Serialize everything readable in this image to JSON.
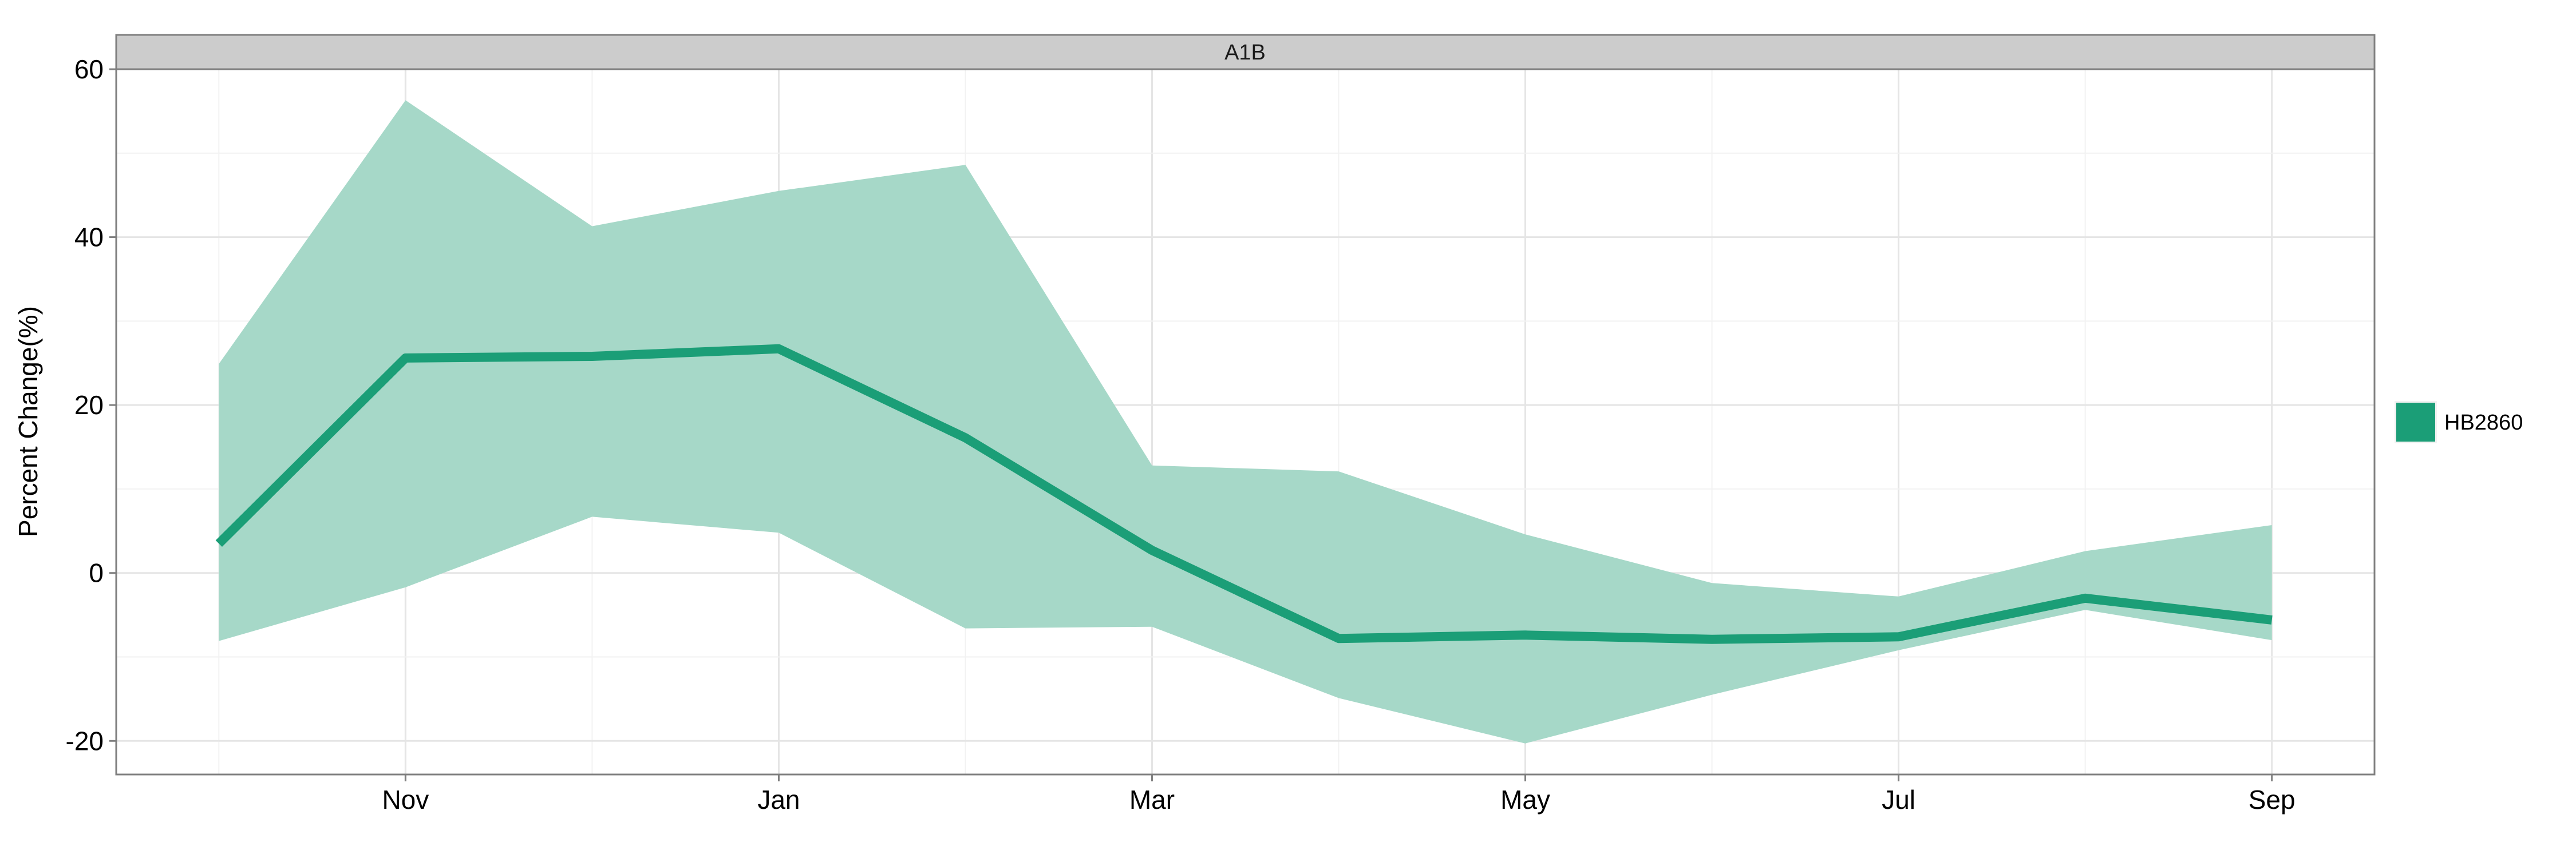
{
  "chart_data": {
    "type": "area",
    "facet_label": "A1B",
    "ylabel": "Percent Change(%)",
    "xlabel": "",
    "ylim": [
      -24,
      60
    ],
    "yticks": [
      -20,
      0,
      20,
      40,
      60
    ],
    "xlim": [
      0.45,
      12.55
    ],
    "xticks": [
      {
        "x": 2,
        "label": "Nov"
      },
      {
        "x": 4,
        "label": "Jan"
      },
      {
        "x": 6,
        "label": "Mar"
      },
      {
        "x": 8,
        "label": "May"
      },
      {
        "x": 10,
        "label": "Jul"
      },
      {
        "x": 12,
        "label": "Sep"
      }
    ],
    "grid": true,
    "legend_position": "right",
    "x": [
      1,
      2,
      3,
      4,
      5,
      6,
      7,
      8,
      9,
      10,
      11,
      12
    ],
    "series": [
      {
        "name": "HB2860",
        "color": "#1b9e77",
        "fill_color": "#a6d8c8",
        "values": [
          3.5,
          25.6,
          25.8,
          26.7,
          16.1,
          2.7,
          -7.8,
          -7.4,
          -7.9,
          -7.6,
          -3.0,
          -5.6
        ],
        "lower": [
          -8.1,
          -1.7,
          6.7,
          4.8,
          -6.6,
          -6.4,
          -14.9,
          -20.3,
          -14.5,
          -9.2,
          -4.4,
          -8.0
        ],
        "upper": [
          24.9,
          56.3,
          41.3,
          45.5,
          48.6,
          12.8,
          12.1,
          4.6,
          -1.2,
          -2.8,
          2.6,
          5.7
        ]
      }
    ]
  }
}
